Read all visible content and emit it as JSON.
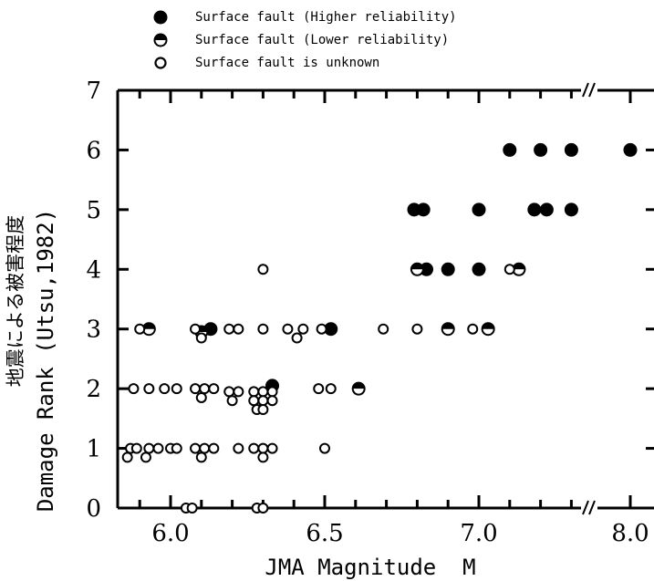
{
  "chart_data": {
    "type": "scatter",
    "title": "",
    "xlabel": "JMA Magnitude  M",
    "ylabel": "Damage Rank (Utsu,1982)",
    "ylabel_jp": "地震による被害程度",
    "x_ticks": [
      "6.0",
      "6.5",
      "7.0",
      "8.0"
    ],
    "y_ticks": [
      "0",
      "1",
      "2",
      "3",
      "4",
      "5",
      "6",
      "7"
    ],
    "ylim": [
      0,
      7
    ],
    "xlim": [
      5.85,
      8.1
    ],
    "x_axis_break": [
      7.35,
      7.95
    ],
    "grid": false,
    "legend_position": "top-left, above plot",
    "legend": [
      {
        "marker": "filled",
        "label": "Surface fault (Higher reliability)"
      },
      {
        "marker": "half",
        "label": "Surface fault (Lower reliability)"
      },
      {
        "marker": "open",
        "label": "Surface fault is unknown"
      }
    ],
    "series": [
      {
        "name": "Surface fault (Higher reliability)",
        "marker": "filled",
        "points": [
          [
            6.13,
            3
          ],
          [
            6.33,
            2.05
          ],
          [
            6.52,
            3
          ],
          [
            6.79,
            5
          ],
          [
            6.82,
            5
          ],
          [
            6.83,
            4
          ],
          [
            6.9,
            4
          ],
          [
            7.0,
            5
          ],
          [
            7.0,
            4
          ],
          [
            7.1,
            6
          ],
          [
            7.2,
            6
          ],
          [
            7.3,
            6
          ],
          [
            8.0,
            6
          ],
          [
            7.18,
            5
          ],
          [
            7.22,
            5
          ],
          [
            7.3,
            5
          ]
        ]
      },
      {
        "name": "Surface fault (Lower reliability)",
        "marker": "half",
        "points": [
          [
            5.93,
            3
          ],
          [
            6.1,
            2.95
          ],
          [
            6.61,
            2
          ],
          [
            6.8,
            4
          ],
          [
            6.9,
            3
          ],
          [
            7.03,
            3
          ],
          [
            7.13,
            4
          ]
        ]
      },
      {
        "name": "Surface fault is unknown",
        "marker": "open",
        "points": [
          [
            5.9,
            3
          ],
          [
            5.88,
            2
          ],
          [
            5.93,
            2
          ],
          [
            5.87,
            1
          ],
          [
            5.89,
            1
          ],
          [
            5.93,
            1
          ],
          [
            5.96,
            1
          ],
          [
            5.86,
            0.85
          ],
          [
            5.92,
            0.85
          ],
          [
            6.08,
            3
          ],
          [
            6.1,
            2.85
          ],
          [
            6.19,
            3
          ],
          [
            6.22,
            3
          ],
          [
            6.3,
            3
          ],
          [
            6.38,
            3
          ],
          [
            6.43,
            3
          ],
          [
            6.41,
            2.85
          ],
          [
            6.49,
            3
          ],
          [
            6.69,
            3
          ],
          [
            6.8,
            3
          ],
          [
            6.98,
            3
          ],
          [
            5.98,
            2
          ],
          [
            6.02,
            2
          ],
          [
            6.08,
            2
          ],
          [
            6.11,
            2
          ],
          [
            6.14,
            2
          ],
          [
            6.1,
            1.85
          ],
          [
            6.19,
            1.95
          ],
          [
            6.22,
            1.95
          ],
          [
            6.2,
            1.8
          ],
          [
            6.27,
            1.95
          ],
          [
            6.3,
            1.95
          ],
          [
            6.33,
            1.95
          ],
          [
            6.27,
            1.8
          ],
          [
            6.3,
            1.8
          ],
          [
            6.33,
            1.8
          ],
          [
            6.28,
            1.65
          ],
          [
            6.3,
            1.65
          ],
          [
            6.48,
            2
          ],
          [
            6.52,
            2
          ],
          [
            6.0,
            1
          ],
          [
            6.02,
            1
          ],
          [
            6.08,
            1
          ],
          [
            6.11,
            1
          ],
          [
            6.14,
            1
          ],
          [
            6.1,
            0.85
          ],
          [
            6.22,
            1
          ],
          [
            6.27,
            1
          ],
          [
            6.3,
            1
          ],
          [
            6.33,
            1
          ],
          [
            6.3,
            0.85
          ],
          [
            6.5,
            1
          ],
          [
            6.05,
            0
          ],
          [
            6.07,
            0
          ],
          [
            6.28,
            0
          ],
          [
            6.3,
            0
          ],
          [
            6.3,
            4
          ],
          [
            7.1,
            4
          ]
        ]
      }
    ]
  }
}
